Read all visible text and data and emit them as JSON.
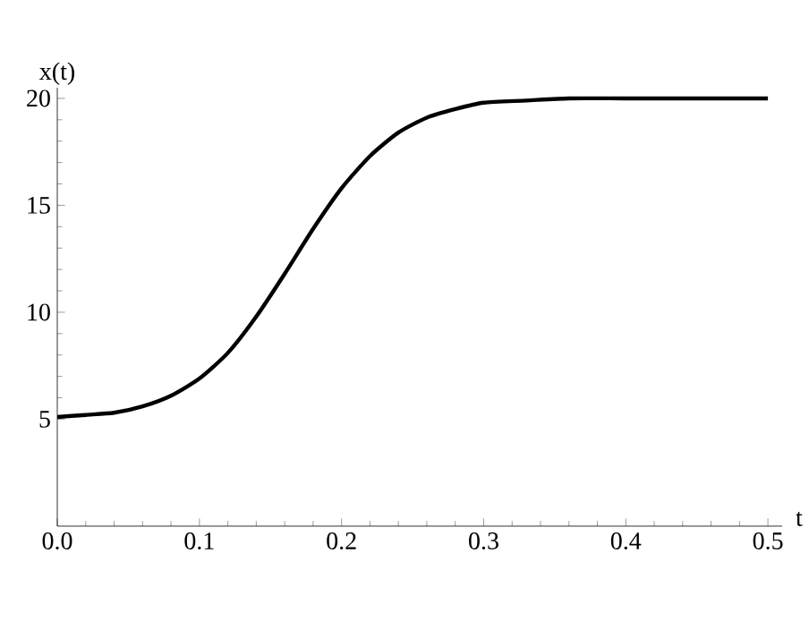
{
  "chart_data": {
    "type": "line",
    "xlabel": "t",
    "ylabel": "x(t)",
    "series": [
      {
        "color": "#000000",
        "x": [
          0,
          0.02,
          0.04,
          0.06,
          0.08,
          0.1,
          0.12,
          0.14,
          0.16,
          0.18,
          0.2,
          0.22,
          0.24,
          0.26,
          0.28,
          0.3,
          0.33,
          0.36,
          0.4,
          0.45,
          0.5
        ],
        "values": [
          5.1,
          5.2,
          5.3,
          5.6,
          6.1,
          6.9,
          8.1,
          9.8,
          11.8,
          13.9,
          15.8,
          17.3,
          18.4,
          19.1,
          19.5,
          19.8,
          19.9,
          20,
          20,
          20,
          20
        ]
      }
    ],
    "xlim": [
      0,
      0.51
    ],
    "ylim": [
      0,
      20.5
    ],
    "xticks": [
      {
        "value": 0,
        "label": "0.0"
      },
      0.1,
      0.2,
      0.3,
      0.4,
      0.5
    ],
    "yticks": [
      5,
      10,
      15,
      20
    ],
    "grid": false,
    "marker": "none",
    "line_style": "solid"
  }
}
